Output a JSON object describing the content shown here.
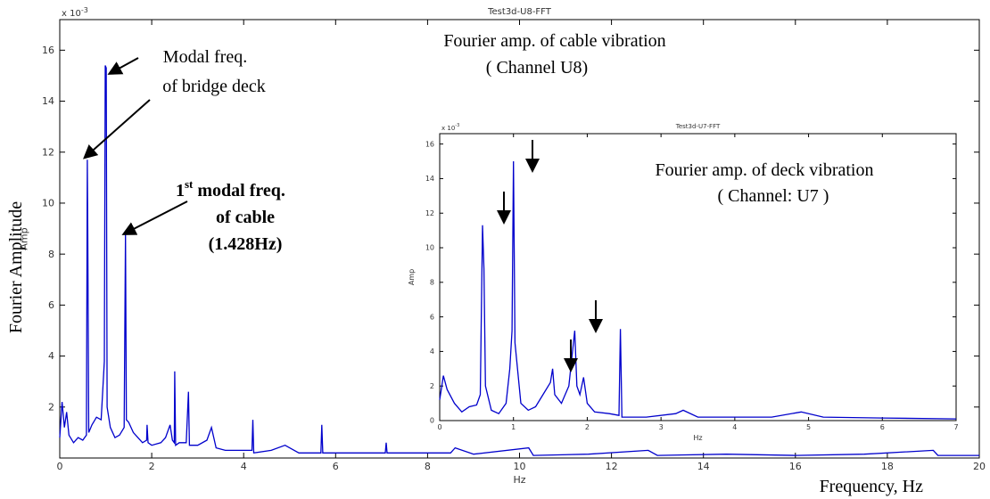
{
  "chart_data": [
    {
      "type": "line",
      "title": "Test3d-U8-FFT",
      "xlabel": "Hz",
      "ylabel": "Amp",
      "multiplier": "x 10",
      "multiplier_exp": "-3",
      "color": "#0000cc",
      "grid": false,
      "xlim": [
        0,
        20
      ],
      "ylim": [
        0,
        17.2
      ],
      "xticks": [
        0,
        2,
        4,
        6,
        8,
        10,
        12,
        14,
        16,
        18,
        20
      ],
      "yticks": [
        2,
        4,
        6,
        8,
        10,
        12,
        14,
        16
      ],
      "x": [
        0,
        0.05,
        0.1,
        0.15,
        0.2,
        0.3,
        0.4,
        0.5,
        0.58,
        0.6,
        0.61,
        0.63,
        0.7,
        0.8,
        0.9,
        0.97,
        0.99,
        1.01,
        1.03,
        1.1,
        1.2,
        1.3,
        1.4,
        1.43,
        1.45,
        1.5,
        1.6,
        1.7,
        1.8,
        1.89,
        1.9,
        1.92,
        2.0,
        2.2,
        2.3,
        2.4,
        2.45,
        2.49,
        2.5,
        2.52,
        2.6,
        2.75,
        2.8,
        2.82,
        3.0,
        3.2,
        3.3,
        3.4,
        3.6,
        4.0,
        4.18,
        4.2,
        4.22,
        4.6,
        4.9,
        5.2,
        5.68,
        5.7,
        5.72,
        6.5,
        7.08,
        7.1,
        7.12,
        8.5,
        8.6,
        9.0,
        10.2,
        10.3,
        11.5,
        12.8,
        13,
        14.5,
        16,
        17.5,
        19,
        19.1,
        20
      ],
      "values": [
        0.8,
        2.2,
        1.2,
        1.8,
        0.9,
        0.6,
        0.8,
        0.7,
        0.9,
        11.7,
        9.0,
        1.0,
        1.3,
        1.6,
        1.5,
        3.8,
        15.4,
        15.3,
        2.0,
        1.2,
        0.8,
        0.9,
        1.2,
        8.8,
        1.5,
        1.4,
        1.0,
        0.8,
        0.6,
        0.7,
        1.3,
        0.6,
        0.5,
        0.6,
        0.8,
        1.3,
        0.7,
        0.6,
        3.4,
        0.5,
        0.6,
        0.6,
        2.6,
        0.5,
        0.5,
        0.7,
        1.2,
        0.4,
        0.3,
        0.3,
        0.3,
        1.5,
        0.2,
        0.3,
        0.5,
        0.2,
        0.2,
        1.3,
        0.2,
        0.2,
        0.2,
        0.6,
        0.2,
        0.2,
        0.4,
        0.15,
        0.4,
        0.1,
        0.15,
        0.3,
        0.1,
        0.15,
        0.1,
        0.15,
        0.3,
        0.1,
        0.1
      ],
      "annotations": [
        "Fourier Amplitude",
        "Frequency, Hz",
        "Fourier amp. of cable vibration",
        "( Channel U8)",
        "Modal freq.",
        "of bridge deck",
        "1",
        "st",
        "modal freq.",
        "of cable",
        "(1.428Hz)"
      ]
    },
    {
      "type": "line",
      "title": "Test3d-U7-FFT",
      "xlabel": "Hz",
      "ylabel": "Amp",
      "multiplier": "x 10",
      "multiplier_exp": "-3",
      "color": "#0000cc",
      "grid": false,
      "xlim": [
        0,
        7
      ],
      "ylim": [
        0,
        16.6
      ],
      "xticks": [
        0,
        1,
        2,
        3,
        4,
        5,
        6,
        7
      ],
      "yticks": [
        0,
        2,
        4,
        6,
        8,
        10,
        12,
        14,
        16
      ],
      "x": [
        0,
        0.05,
        0.1,
        0.2,
        0.3,
        0.4,
        0.5,
        0.55,
        0.58,
        0.6,
        0.62,
        0.7,
        0.8,
        0.9,
        0.95,
        0.98,
        1.0,
        1.02,
        1.1,
        1.2,
        1.3,
        1.4,
        1.5,
        1.53,
        1.56,
        1.65,
        1.75,
        1.8,
        1.83,
        1.86,
        1.9,
        1.95,
        2.0,
        2.1,
        2.3,
        2.43,
        2.45,
        2.47,
        2.8,
        3.2,
        3.3,
        3.5,
        4.5,
        4.9,
        5.2,
        6,
        7
      ],
      "values": [
        1.2,
        2.6,
        1.8,
        1.0,
        0.5,
        0.8,
        0.9,
        1.5,
        11.3,
        8.8,
        2.0,
        0.6,
        0.4,
        1.0,
        3.0,
        5.2,
        15.0,
        4.5,
        1.0,
        0.6,
        0.8,
        1.5,
        2.2,
        3.0,
        1.5,
        1.0,
        2.0,
        4.0,
        5.2,
        2.0,
        1.5,
        2.5,
        1.0,
        0.5,
        0.4,
        0.3,
        5.3,
        0.2,
        0.2,
        0.4,
        0.6,
        0.2,
        0.2,
        0.5,
        0.2,
        0.15,
        0.1
      ],
      "annotations": [
        "Fourier amp. of deck vibration",
        "( Channel: U7 )"
      ]
    }
  ]
}
